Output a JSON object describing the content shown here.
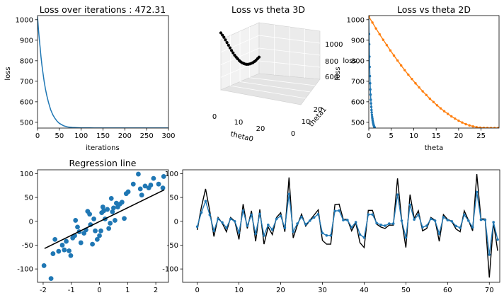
{
  "chart_data": [
    {
      "id": "loss-iter",
      "type": "line",
      "title": "Loss over iterations : 472.31",
      "xlabel": "iterations",
      "ylabel": "loss",
      "xlim": [
        0,
        300
      ],
      "ylim": [
        472,
        1020
      ],
      "xticks": [
        0,
        50,
        100,
        150,
        200,
        250,
        300
      ],
      "yticks": [
        500,
        600,
        700,
        800,
        900,
        1000
      ],
      "series": [
        {
          "color": "#1f77b4",
          "x": [
            0,
            2,
            4,
            6,
            8,
            10,
            12,
            15,
            18,
            21,
            25,
            30,
            35,
            40,
            45,
            50,
            60,
            70,
            80,
            100,
            130,
            160,
            200,
            250,
            300
          ],
          "y": [
            1015,
            957,
            907,
            864,
            818,
            780,
            748,
            702,
            664,
            633,
            598,
            562,
            537,
            519,
            505,
            495,
            483,
            477,
            475,
            473,
            472.5,
            472.4,
            472.3,
            472.3,
            472.3
          ]
        }
      ]
    },
    {
      "id": "loss-theta-3d",
      "type": "scatter",
      "title": "Loss vs theta 3D",
      "xlabel": "theta0",
      "ylabel": "theta1",
      "zlabel": "loss",
      "xticks": [
        0,
        10,
        20
      ],
      "yticks": [
        0,
        10,
        20
      ],
      "zticks": [
        600,
        800,
        1000
      ],
      "color": "#000000",
      "points": [
        {
          "t": 0.0,
          "z": 1015
        },
        {
          "t": 0.04,
          "z": 985
        },
        {
          "t": 0.08,
          "z": 955
        },
        {
          "t": 0.12,
          "z": 920
        },
        {
          "t": 0.16,
          "z": 885
        },
        {
          "t": 0.2,
          "z": 850
        },
        {
          "t": 0.24,
          "z": 815
        },
        {
          "t": 0.28,
          "z": 780
        },
        {
          "t": 0.32,
          "z": 748
        },
        {
          "t": 0.36,
          "z": 716
        },
        {
          "t": 0.4,
          "z": 690
        },
        {
          "t": 0.44,
          "z": 665
        },
        {
          "t": 0.48,
          "z": 640
        },
        {
          "t": 0.52,
          "z": 620
        },
        {
          "t": 0.56,
          "z": 603
        },
        {
          "t": 0.6,
          "z": 590
        },
        {
          "t": 0.64,
          "z": 578
        },
        {
          "t": 0.68,
          "z": 570
        },
        {
          "t": 0.72,
          "z": 565
        },
        {
          "t": 0.76,
          "z": 563
        },
        {
          "t": 0.8,
          "z": 564
        },
        {
          "t": 0.84,
          "z": 566
        },
        {
          "t": 0.88,
          "z": 572
        },
        {
          "t": 0.92,
          "z": 580
        },
        {
          "t": 0.96,
          "z": 592
        },
        {
          "t": 1.0,
          "z": 604
        }
      ]
    },
    {
      "id": "loss-theta-2d",
      "type": "line",
      "title": "Loss vs theta 2D",
      "xlabel": "theta",
      "ylabel": "loss",
      "xlim": [
        0,
        29
      ],
      "ylim": [
        472,
        1020
      ],
      "xticks": [
        0,
        5,
        10,
        15,
        20,
        25
      ],
      "yticks": [
        500,
        600,
        700,
        800,
        900,
        1000
      ],
      "series": [
        {
          "color": "#1f77b4",
          "x": [
            0,
            0.05,
            0.1,
            0.15,
            0.2,
            0.25,
            0.3,
            0.35,
            0.4,
            0.45,
            0.5,
            0.55,
            0.6,
            0.65,
            0.7,
            0.75,
            0.8,
            0.85,
            0.9,
            0.95,
            1.0,
            1.05,
            1.1,
            1.15,
            1.2,
            1.25,
            1.3
          ],
          "y": [
            1015,
            930,
            880,
            820,
            770,
            725,
            690,
            660,
            635,
            610,
            592,
            575,
            560,
            548,
            536,
            526,
            518,
            510,
            503,
            498,
            493,
            489,
            485,
            482,
            479,
            477,
            475
          ]
        },
        {
          "color": "#ff7f0e",
          "x": [
            0,
            0.8,
            1.6,
            2.4,
            3.2,
            4.0,
            4.8,
            5.6,
            6.4,
            7.2,
            8.0,
            8.8,
            9.6,
            10.4,
            11.2,
            12.0,
            12.8,
            13.6,
            14.4,
            15.2,
            16.0,
            16.8,
            17.6,
            18.4,
            19.2,
            20.0,
            20.8,
            21.6,
            22.4,
            23.2,
            24.0,
            24.8,
            25.6,
            26.4,
            27.2,
            28.0,
            28.8
          ],
          "y": [
            1015,
            986,
            957,
            929,
            902,
            876,
            850,
            825,
            801,
            777,
            754,
            732,
            711,
            690,
            670,
            651,
            633,
            615,
            599,
            583,
            568,
            554,
            541,
            529,
            518,
            508,
            499,
            491,
            485,
            480,
            476,
            474,
            473,
            472.5,
            472.3,
            472.3,
            472.3
          ]
        }
      ]
    },
    {
      "id": "regression",
      "type": "scatter",
      "title": "Regression line",
      "xlim": [
        -2.2,
        2.45
      ],
      "ylim": [
        -128,
        108
      ],
      "xticks": [
        -2,
        -1,
        0,
        1,
        2
      ],
      "yticks": [
        -100,
        -50,
        0,
        50,
        100
      ],
      "point_color": "#1f77b4",
      "line_color": "#000000",
      "line": {
        "x": [
          -1.95,
          2.3
        ],
        "y": [
          -57,
          66
        ]
      },
      "points": [
        [
          -1.97,
          -93
        ],
        [
          -1.72,
          -120
        ],
        [
          -1.65,
          -68
        ],
        [
          -1.58,
          -38
        ],
        [
          -1.45,
          -63
        ],
        [
          -1.32,
          -50
        ],
        [
          -1.25,
          -60
        ],
        [
          -1.18,
          -42
        ],
        [
          -1.08,
          -62
        ],
        [
          -1.02,
          -72
        ],
        [
          -0.95,
          -35
        ],
        [
          -0.88,
          -30
        ],
        [
          -0.85,
          2
        ],
        [
          -0.78,
          -12
        ],
        [
          -0.72,
          -22
        ],
        [
          -0.66,
          -45
        ],
        [
          -0.55,
          -25
        ],
        [
          -0.48,
          -18
        ],
        [
          -0.42,
          21
        ],
        [
          -0.35,
          15
        ],
        [
          -0.32,
          -7
        ],
        [
          -0.25,
          -48
        ],
        [
          -0.2,
          5
        ],
        [
          -0.15,
          -20
        ],
        [
          -0.08,
          -38
        ],
        [
          0.0,
          -30
        ],
        [
          0.05,
          -20
        ],
        [
          0.08,
          18
        ],
        [
          0.12,
          30
        ],
        [
          0.15,
          22
        ],
        [
          0.2,
          5
        ],
        [
          0.28,
          25
        ],
        [
          0.33,
          -15
        ],
        [
          0.38,
          -4
        ],
        [
          0.42,
          48
        ],
        [
          0.46,
          20
        ],
        [
          0.5,
          28
        ],
        [
          0.55,
          2
        ],
        [
          0.6,
          38
        ],
        [
          0.65,
          30
        ],
        [
          0.72,
          36
        ],
        [
          0.8,
          40
        ],
        [
          0.88,
          6
        ],
        [
          0.95,
          58
        ],
        [
          1.02,
          62
        ],
        [
          1.2,
          78
        ],
        [
          1.38,
          99
        ],
        [
          1.45,
          68
        ],
        [
          1.5,
          55
        ],
        [
          1.62,
          74
        ],
        [
          1.75,
          70
        ],
        [
          1.82,
          76
        ],
        [
          1.92,
          90
        ],
        [
          2.1,
          78
        ],
        [
          2.25,
          70
        ],
        [
          2.28,
          94
        ]
      ]
    },
    {
      "id": "series",
      "type": "line",
      "xlim": [
        -3.5,
        72.5
      ],
      "ylim": [
        -128,
        108
      ],
      "xticks": [
        0,
        10,
        20,
        30,
        40,
        50,
        60,
        70
      ],
      "yticks": [
        -100,
        -50,
        0,
        50,
        100
      ],
      "series": [
        {
          "color": "#000000",
          "y": [
            -18,
            30,
            68,
            22,
            -32,
            8,
            -4,
            -22,
            8,
            0,
            -38,
            36,
            -15,
            22,
            -42,
            25,
            -48,
            -12,
            -28,
            8,
            18,
            -22,
            92,
            -35,
            -8,
            15,
            -10,
            2,
            13,
            24,
            -40,
            -48,
            -48,
            35,
            36,
            4,
            4,
            -20,
            -3,
            -45,
            -55,
            23,
            23,
            -6,
            -12,
            -15,
            -8,
            -8,
            90,
            2,
            -55,
            56,
            6,
            22,
            -20,
            -15,
            8,
            2,
            -42,
            14,
            4,
            0,
            -16,
            -22,
            22,
            2,
            -20,
            99,
            5,
            5,
            -118,
            -3,
            -62
          ],
          "color_alt": "#1f77b4"
        }
      ]
    }
  ]
}
